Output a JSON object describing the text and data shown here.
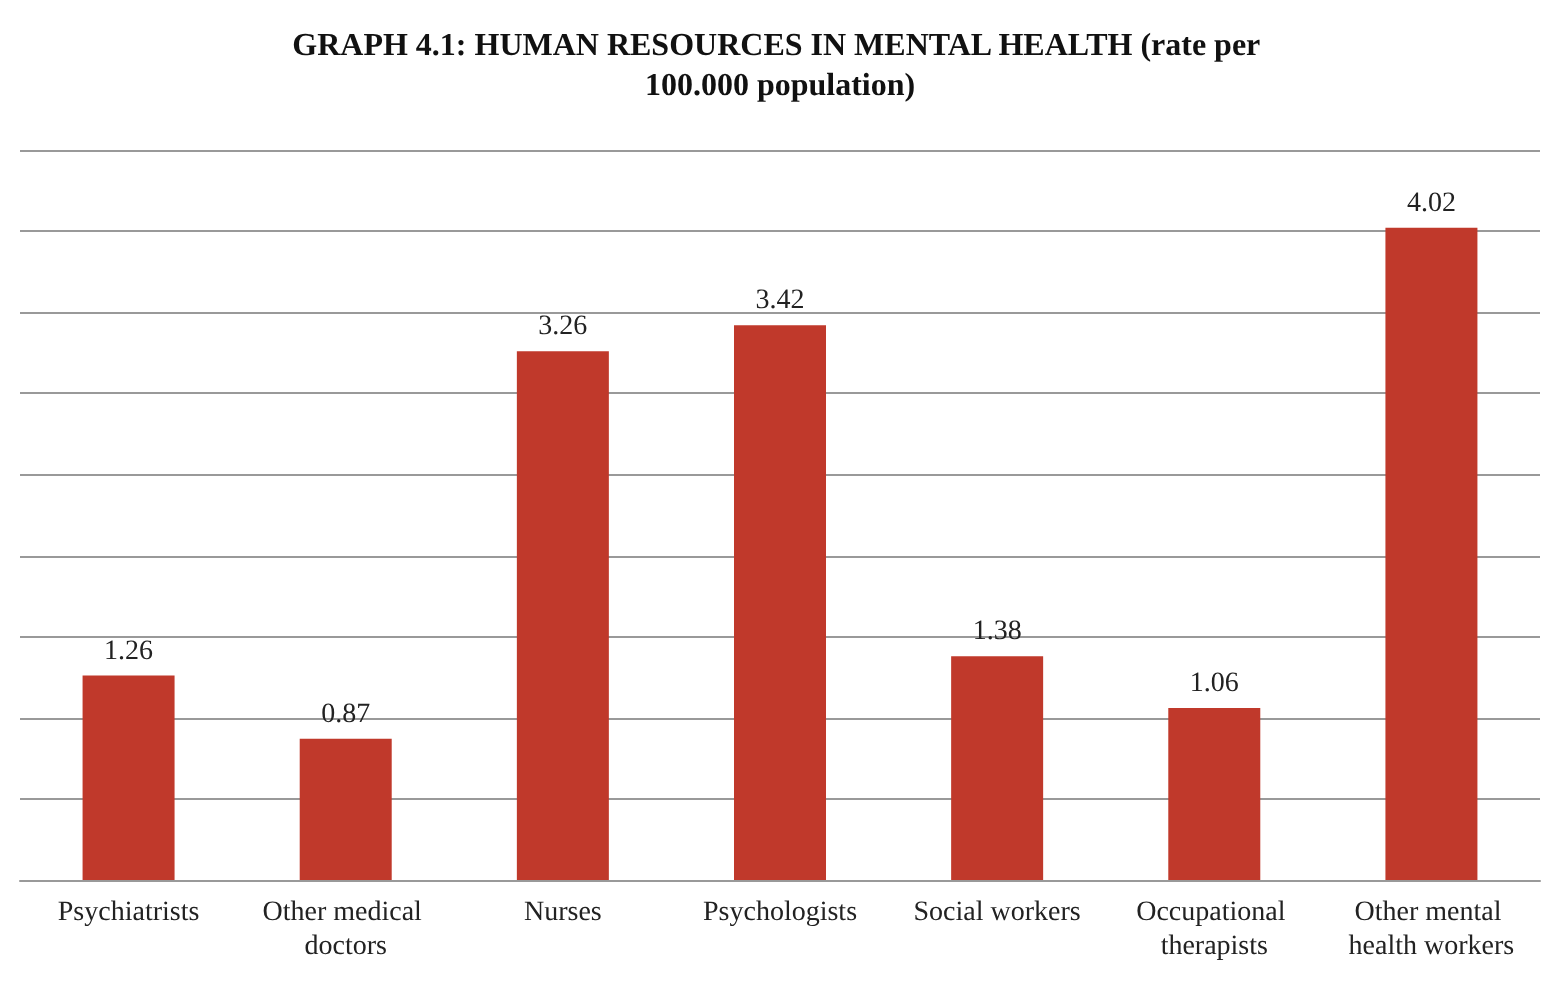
{
  "chart_data": {
    "type": "bar",
    "title": "GRAPH 4.1: HUMAN RESOURCES IN MENTAL HEALTH (rate per 100.000 population)",
    "categories": [
      "Psychiatrists",
      "Other medical doctors",
      "Nurses",
      "Psychologists",
      "Social workers",
      "Occupational therapists",
      "Other mental health workers"
    ],
    "values": [
      1.26,
      0.87,
      3.26,
      3.42,
      1.38,
      1.06,
      4.02
    ],
    "color": "#c0392b",
    "ylim": [
      0,
      4.5
    ],
    "yticks": [
      {
        "value": 0,
        "label": null
      },
      {
        "value": 0.5,
        "label": null
      },
      {
        "value": 1,
        "label": null
      },
      {
        "value": 1.5,
        "label": null
      },
      {
        "value": 2,
        "label": null
      },
      {
        "value": 2.5,
        "label": null
      },
      {
        "value": 3,
        "label": null
      },
      {
        "value": 3.5,
        "label": null
      },
      {
        "value": 4,
        "label": null
      },
      {
        "value": 4.5,
        "label": null
      }
    ],
    "tick_labels": "x",
    "grid": "y",
    "data_labels": true
  }
}
